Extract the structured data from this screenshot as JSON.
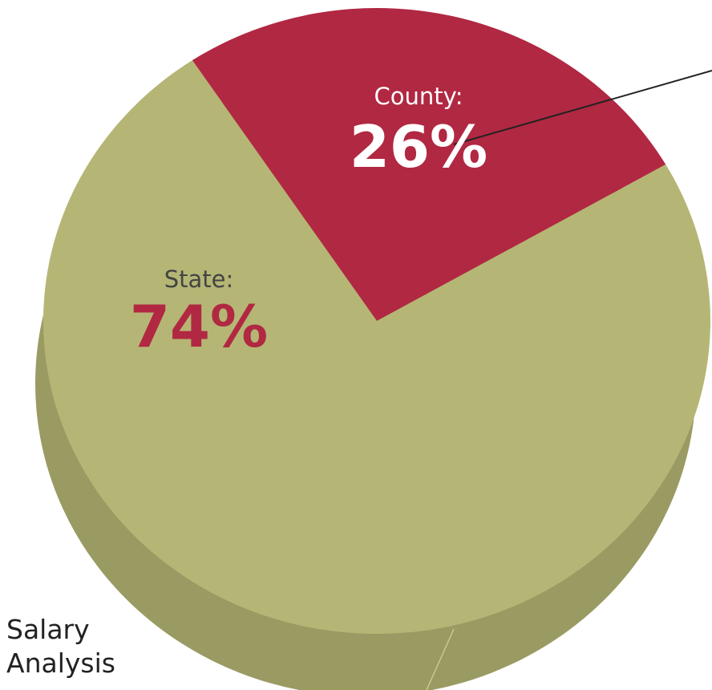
{
  "chart_data": {
    "type": "pie",
    "slices": [
      {
        "label": "County:",
        "value": 26,
        "display": "26%",
        "color": "#b12842",
        "label_color": "#ffffff",
        "name_color": "#ffffff",
        "pct_color": "#ffffff"
      },
      {
        "label": "State:",
        "value": 74,
        "display": "74%",
        "color": "#b5b675",
        "label_color": "#444444",
        "name_color": "#444444",
        "pct_color": "#b12842"
      }
    ],
    "style": "3d",
    "side_color": "#9a9a63"
  },
  "caption": "Salary Analysis"
}
